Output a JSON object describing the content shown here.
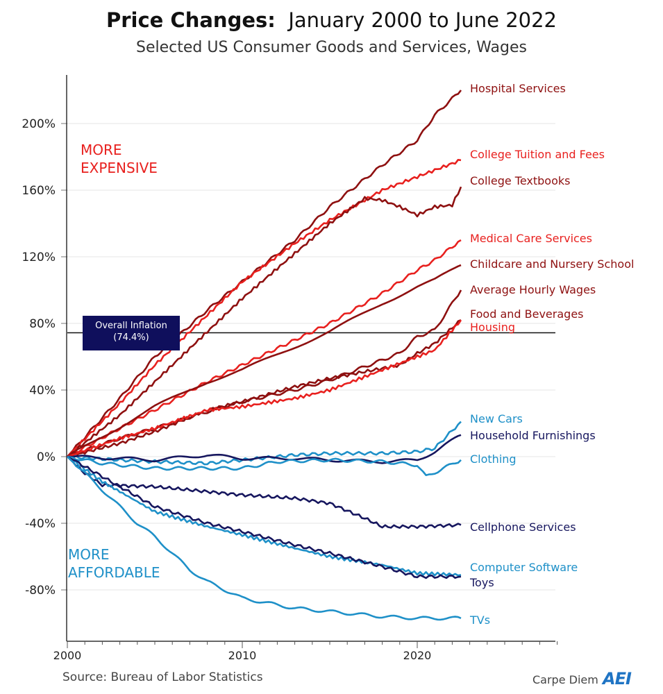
{
  "chart_data": {
    "type": "line",
    "title_bold": "Price Changes:",
    "title_rest": "January 2000 to June 2022",
    "subtitle": "Selected US Consumer Goods and Services, Wages",
    "ylim": [
      -100,
      230
    ],
    "xlim": [
      1999.9,
      2028
    ],
    "y_ticks": [
      {
        "v": 200,
        "label": "200%"
      },
      {
        "v": 160,
        "label": "160%"
      },
      {
        "v": 120,
        "label": "120%"
      },
      {
        "v": 80,
        "label": "80%"
      },
      {
        "v": 40,
        "label": "40%"
      },
      {
        "v": 0,
        "label": "0%"
      },
      {
        "v": -40,
        "label": "-40%"
      },
      {
        "v": -80,
        "label": "-80%"
      }
    ],
    "x_ticks": [
      {
        "v": 2000,
        "label": "2000"
      },
      {
        "v": 2010,
        "label": "2010"
      },
      {
        "v": 2020,
        "label": "2020"
      }
    ],
    "grid": "horizontal",
    "reference_line": {
      "label": "Overall Inflation",
      "value_label": "(74.4%)",
      "value": 74.4
    },
    "annotations": {
      "expensive": [
        "MORE",
        "EXPENSIVE"
      ],
      "affordable": [
        "MORE",
        "AFFORDABLE"
      ]
    },
    "colors": {
      "dark_red": "#8e1010",
      "red": "#e8201e",
      "navy": "#16165e",
      "light_blue": "#1e90c8",
      "expensive": "#e8201e",
      "affordable": "#1e90c8"
    },
    "series": [
      {
        "name": "Hospital Services",
        "color": "dark_red",
        "points": [
          [
            2000,
            0
          ],
          [
            2003,
            35
          ],
          [
            2005,
            60
          ],
          [
            2008,
            88
          ],
          [
            2010,
            105
          ],
          [
            2013,
            130
          ],
          [
            2015,
            150
          ],
          [
            2018,
            175
          ],
          [
            2020,
            190
          ],
          [
            2021,
            205
          ],
          [
            2022.5,
            220
          ]
        ]
      },
      {
        "name": "College Tuition and Fees",
        "color": "red",
        "points": [
          [
            2000,
            0
          ],
          [
            2003,
            32
          ],
          [
            2005,
            55
          ],
          [
            2008,
            85
          ],
          [
            2010,
            105
          ],
          [
            2013,
            128
          ],
          [
            2015,
            142
          ],
          [
            2018,
            160
          ],
          [
            2020,
            168
          ],
          [
            2021,
            172
          ],
          [
            2022.5,
            178
          ]
        ]
      },
      {
        "name": "College Textbooks",
        "color": "dark_red",
        "points": [
          [
            2000,
            0
          ],
          [
            2003,
            25
          ],
          [
            2005,
            45
          ],
          [
            2008,
            75
          ],
          [
            2010,
            95
          ],
          [
            2013,
            122
          ],
          [
            2015,
            140
          ],
          [
            2017,
            155
          ],
          [
            2018,
            154
          ],
          [
            2019,
            150
          ],
          [
            2020,
            145
          ],
          [
            2021,
            150
          ],
          [
            2022,
            151
          ],
          [
            2022.5,
            162
          ]
        ]
      },
      {
        "name": "Medical Care Services",
        "color": "red",
        "points": [
          [
            2000,
            0
          ],
          [
            2003,
            17
          ],
          [
            2005,
            28
          ],
          [
            2008,
            45
          ],
          [
            2010,
            55
          ],
          [
            2013,
            70
          ],
          [
            2015,
            80
          ],
          [
            2018,
            98
          ],
          [
            2020,
            112
          ],
          [
            2021,
            118
          ],
          [
            2022.5,
            130
          ]
        ]
      },
      {
        "name": "Childcare and Nursery School",
        "color": "dark_red",
        "points": [
          [
            2000,
            0
          ],
          [
            2003,
            18
          ],
          [
            2005,
            30
          ],
          [
            2008,
            45
          ],
          [
            2010,
            52
          ],
          [
            2013,
            66
          ],
          [
            2015,
            75
          ],
          [
            2018,
            92
          ],
          [
            2020,
            102
          ],
          [
            2021,
            106
          ],
          [
            2022.5,
            115
          ]
        ]
      },
      {
        "name": "Average Hourly Wages",
        "color": "dark_red",
        "points": [
          [
            2000,
            0
          ],
          [
            2003,
            11
          ],
          [
            2005,
            17
          ],
          [
            2008,
            27
          ],
          [
            2010,
            33
          ],
          [
            2013,
            40
          ],
          [
            2015,
            46
          ],
          [
            2019,
            62
          ],
          [
            2020,
            72
          ],
          [
            2021,
            76
          ],
          [
            2022.5,
            100
          ]
        ]
      },
      {
        "name": "Food and Beverages",
        "color": "dark_red",
        "points": [
          [
            2000,
            0
          ],
          [
            2003,
            8
          ],
          [
            2005,
            15
          ],
          [
            2008,
            28
          ],
          [
            2010,
            33
          ],
          [
            2013,
            42
          ],
          [
            2015,
            47
          ],
          [
            2019,
            55
          ],
          [
            2020,
            62
          ],
          [
            2021,
            68
          ],
          [
            2022.5,
            82
          ]
        ]
      },
      {
        "name": "Housing",
        "color": "red",
        "points": [
          [
            2000,
            0
          ],
          [
            2003,
            11
          ],
          [
            2005,
            17
          ],
          [
            2008,
            28
          ],
          [
            2010,
            30
          ],
          [
            2013,
            35
          ],
          [
            2015,
            40
          ],
          [
            2018,
            52
          ],
          [
            2020,
            60
          ],
          [
            2021,
            64
          ],
          [
            2022.5,
            82
          ]
        ]
      },
      {
        "name": "New Cars",
        "color": "light_blue",
        "points": [
          [
            2000,
            0
          ],
          [
            2003,
            -2
          ],
          [
            2005,
            -3
          ],
          [
            2008,
            -4
          ],
          [
            2010,
            -2
          ],
          [
            2013,
            1
          ],
          [
            2015,
            2
          ],
          [
            2018,
            2
          ],
          [
            2020,
            3
          ],
          [
            2021,
            5
          ],
          [
            2022.5,
            21
          ]
        ]
      },
      {
        "name": "Household Furnishings",
        "color": "navy",
        "points": [
          [
            2000,
            0
          ],
          [
            2003,
            -1
          ],
          [
            2005,
            -2
          ],
          [
            2008,
            1
          ],
          [
            2010,
            -1
          ],
          [
            2013,
            -1
          ],
          [
            2015,
            -2
          ],
          [
            2018,
            -3
          ],
          [
            2020,
            -2
          ],
          [
            2021,
            3
          ],
          [
            2022.5,
            13
          ]
        ]
      },
      {
        "name": "Clothing",
        "color": "light_blue",
        "points": [
          [
            2000,
            0
          ],
          [
            2002,
            -4
          ],
          [
            2005,
            -7
          ],
          [
            2008,
            -7
          ],
          [
            2010,
            -7
          ],
          [
            2012,
            -3
          ],
          [
            2015,
            -2
          ],
          [
            2018,
            -3
          ],
          [
            2020,
            -5
          ],
          [
            2020.5,
            -12
          ],
          [
            2021.5,
            -7
          ],
          [
            2022.5,
            -2
          ]
        ]
      },
      {
        "name": "Cellphone Services",
        "color": "navy",
        "points": [
          [
            2000,
            0
          ],
          [
            2001,
            -10
          ],
          [
            2002,
            -17
          ],
          [
            2005,
            -18
          ],
          [
            2008,
            -21
          ],
          [
            2010,
            -23
          ],
          [
            2013,
            -25
          ],
          [
            2015,
            -28
          ],
          [
            2017,
            -37
          ],
          [
            2018,
            -42
          ],
          [
            2020,
            -42
          ],
          [
            2022.5,
            -41
          ]
        ]
      },
      {
        "name": "Computer Software",
        "color": "light_blue",
        "points": [
          [
            2000,
            0
          ],
          [
            2002,
            -15
          ],
          [
            2005,
            -33
          ],
          [
            2008,
            -42
          ],
          [
            2010,
            -47
          ],
          [
            2013,
            -55
          ],
          [
            2015,
            -60
          ],
          [
            2018,
            -65
          ],
          [
            2020,
            -70
          ],
          [
            2022.5,
            -71
          ]
        ]
      },
      {
        "name": "Toys",
        "color": "navy",
        "points": [
          [
            2000,
            0
          ],
          [
            2002,
            -12
          ],
          [
            2005,
            -30
          ],
          [
            2008,
            -40
          ],
          [
            2010,
            -45
          ],
          [
            2013,
            -53
          ],
          [
            2015,
            -58
          ],
          [
            2018,
            -66
          ],
          [
            2020,
            -72
          ],
          [
            2022.5,
            -72
          ]
        ]
      },
      {
        "name": "TVs",
        "color": "light_blue",
        "points": [
          [
            2000,
            0
          ],
          [
            2002,
            -20
          ],
          [
            2004,
            -40
          ],
          [
            2005,
            -48
          ],
          [
            2007,
            -68
          ],
          [
            2008,
            -75
          ],
          [
            2010,
            -85
          ],
          [
            2013,
            -91
          ],
          [
            2015,
            -93
          ],
          [
            2018,
            -96
          ],
          [
            2020,
            -97
          ],
          [
            2022.5,
            -97
          ]
        ]
      }
    ],
    "source": "Source: Bureau of Labor Statistics",
    "brand": "Carpe Diem",
    "logo": "AEI"
  }
}
